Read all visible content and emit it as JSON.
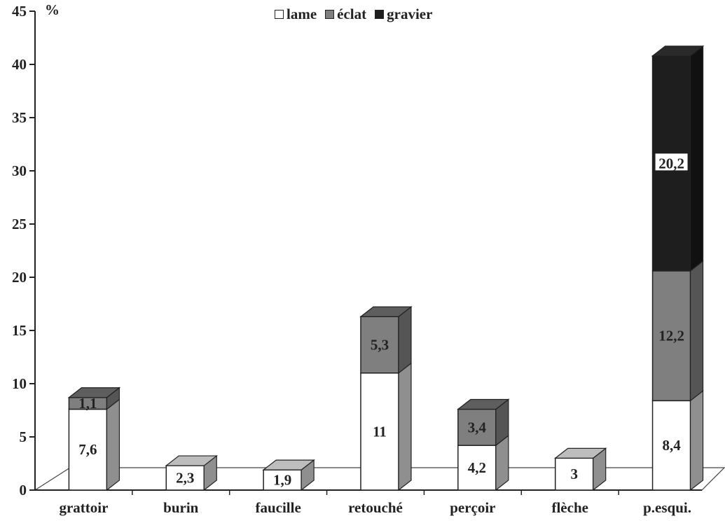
{
  "chart_data": {
    "type": "bar",
    "stacked": true,
    "three_d": true,
    "unit_label": "%",
    "categories": [
      "grattoir",
      "burin",
      "faucille",
      "retouché",
      "perçoir",
      "flèche",
      "p.esqui."
    ],
    "series": [
      {
        "name": "lame",
        "color": "#ffffff",
        "side_color": "#8f8f8f",
        "top_color": "#bdbdbd",
        "values": [
          7.6,
          2.3,
          1.9,
          11,
          4.2,
          3,
          8.4
        ],
        "labels": [
          "7,6",
          "2,3",
          "1,9",
          "11",
          "4,2",
          "3",
          "8,4"
        ]
      },
      {
        "name": "éclat",
        "color": "#7f7f7f",
        "side_color": "#555555",
        "top_color": "#5e5e5e",
        "values": [
          1.1,
          0,
          0,
          5.3,
          3.4,
          0,
          12.2
        ],
        "labels": [
          "1,1",
          "",
          "",
          "5,3",
          "3,4",
          "",
          "12,2"
        ]
      },
      {
        "name": "gravier",
        "color": "#1e1e1e",
        "side_color": "#111111",
        "top_color": "#2a2a2a",
        "values": [
          0,
          0,
          0,
          0,
          0,
          0,
          20.2
        ],
        "labels": [
          "",
          "",
          "",
          "",
          "",
          "",
          "20,2"
        ]
      }
    ],
    "ylim": [
      0,
      45
    ],
    "yticks": [
      0,
      5,
      10,
      15,
      20,
      25,
      30,
      35,
      40,
      45
    ],
    "legend_position": "top-center",
    "grid": false
  }
}
